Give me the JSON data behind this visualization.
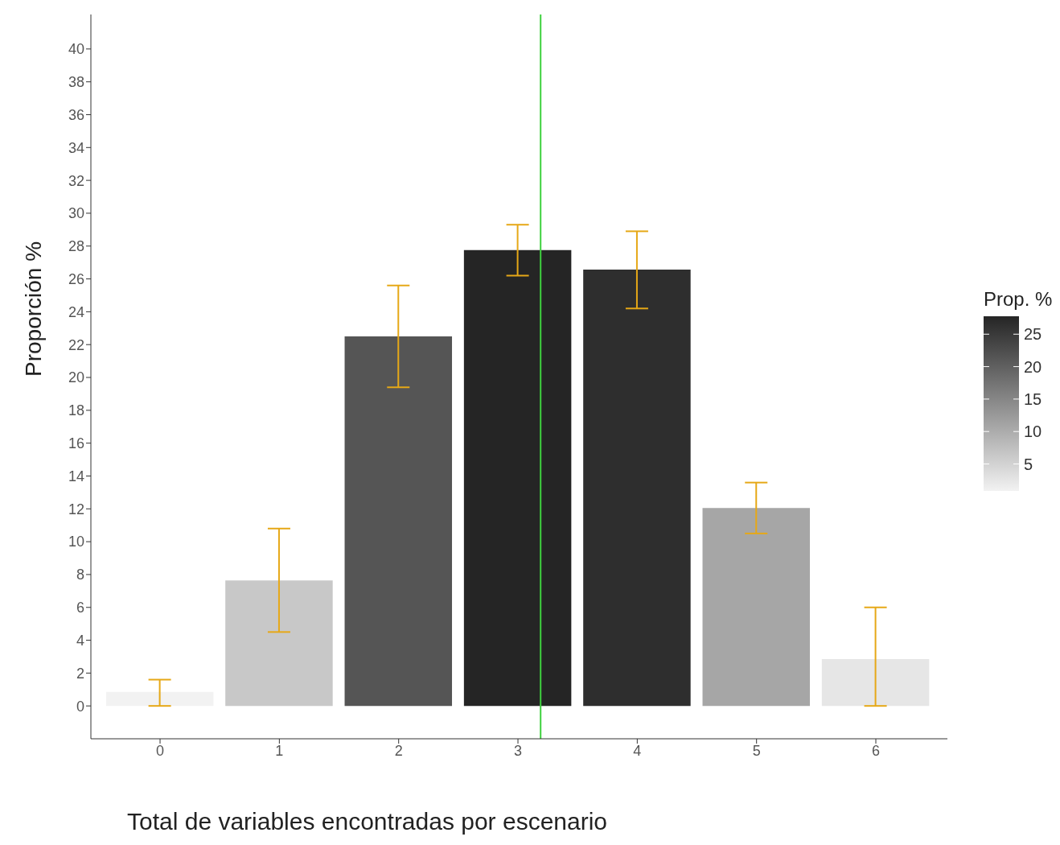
{
  "chart_data": {
    "type": "bar",
    "xlabel": "Total de variables encontradas por escenario",
    "ylabel": "Proporción %",
    "clabel": "Prop. %",
    "x": [
      0,
      1,
      2,
      3,
      4,
      5,
      6
    ],
    "values": [
      0.85,
      7.64,
      22.5,
      27.76,
      26.57,
      12.05,
      2.85
    ],
    "colors": [
      "#f2f2f2",
      "#c8c8c8",
      "#555555",
      "#252525",
      "#2e2e2e",
      "#a6a6a6",
      "#e6e6e6"
    ],
    "errors": [
      [
        0,
        1.6
      ],
      [
        4.5,
        10.8
      ],
      [
        19.4,
        25.6
      ],
      [
        26.2,
        29.3
      ],
      [
        24.2,
        28.9
      ],
      [
        10.5,
        13.6
      ],
      [
        0,
        6
      ]
    ],
    "xlim": [
      -0.58,
      6.6
    ],
    "xticks": [
      0,
      1,
      2,
      3,
      4,
      5,
      6
    ],
    "ylim": [
      -2,
      42.1
    ],
    "yticks": [
      0,
      2,
      4,
      6,
      8,
      10,
      12,
      14,
      16,
      18,
      20,
      22,
      24,
      26,
      28,
      30,
      32,
      34,
      36,
      38,
      40
    ],
    "clim": [
      0.85,
      27.76
    ],
    "cticks": [
      5,
      10,
      15,
      20,
      25
    ],
    "ref_lines": [
      {
        "axis": "x",
        "value": 3.19,
        "color": "#3fd13f"
      }
    ],
    "grid": false
  }
}
